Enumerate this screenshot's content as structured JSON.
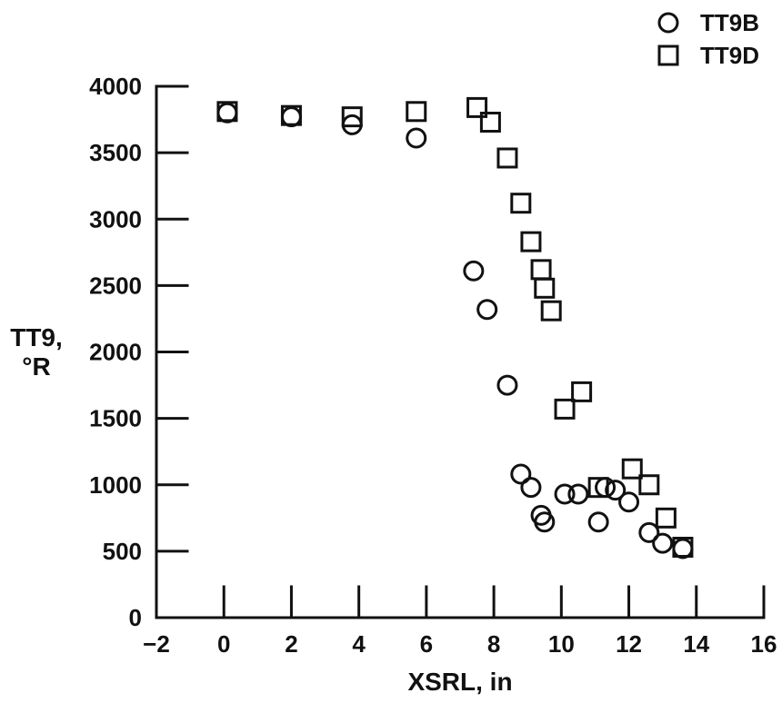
{
  "chart_data": {
    "type": "scatter",
    "title": "",
    "xlabel": "XSRL, in",
    "ylabel": [
      "TT9,",
      "°R"
    ],
    "xlim": [
      -2,
      16
    ],
    "ylim": [
      0,
      4000
    ],
    "x_ticks": [
      -2,
      0,
      2,
      4,
      6,
      8,
      10,
      12,
      14,
      16
    ],
    "x_tick_labels": [
      "−2",
      "0",
      "2",
      "4",
      "6",
      "8",
      "10",
      "12",
      "14",
      "16"
    ],
    "y_ticks": [
      0,
      500,
      1000,
      1500,
      2000,
      2500,
      3000,
      3500,
      4000
    ],
    "y_tick_labels": [
      "0",
      "500",
      "1000",
      "1500",
      "2000",
      "2500",
      "3000",
      "3500",
      "4000"
    ],
    "grid": false,
    "legend_position": "top-right",
    "colors": {
      "ink": "#111111",
      "background": "#ffffff"
    },
    "series": [
      {
        "name": "TT9B",
        "marker": "circle",
        "points": [
          [
            0.1,
            3800
          ],
          [
            2.0,
            3770
          ],
          [
            3.8,
            3710
          ],
          [
            5.7,
            3610
          ],
          [
            7.4,
            2610
          ],
          [
            7.8,
            2320
          ],
          [
            8.4,
            1750
          ],
          [
            8.8,
            1080
          ],
          [
            9.1,
            980
          ],
          [
            9.4,
            770
          ],
          [
            9.5,
            720
          ],
          [
            10.1,
            930
          ],
          [
            10.5,
            930
          ],
          [
            11.1,
            720
          ],
          [
            11.3,
            980
          ],
          [
            11.6,
            960
          ],
          [
            12.0,
            870
          ],
          [
            12.6,
            640
          ],
          [
            13.0,
            560
          ],
          [
            13.6,
            520
          ]
        ]
      },
      {
        "name": "TT9D",
        "marker": "square",
        "points": [
          [
            0.1,
            3810
          ],
          [
            2.0,
            3780
          ],
          [
            3.8,
            3770
          ],
          [
            5.7,
            3810
          ],
          [
            7.5,
            3840
          ],
          [
            7.9,
            3730
          ],
          [
            8.4,
            3460
          ],
          [
            8.8,
            3120
          ],
          [
            9.1,
            2830
          ],
          [
            9.4,
            2620
          ],
          [
            9.5,
            2480
          ],
          [
            9.7,
            2310
          ],
          [
            10.1,
            1570
          ],
          [
            10.6,
            1700
          ],
          [
            11.1,
            980
          ],
          [
            12.1,
            1120
          ],
          [
            12.6,
            1000
          ],
          [
            13.1,
            750
          ],
          [
            13.6,
            530
          ]
        ]
      }
    ]
  }
}
